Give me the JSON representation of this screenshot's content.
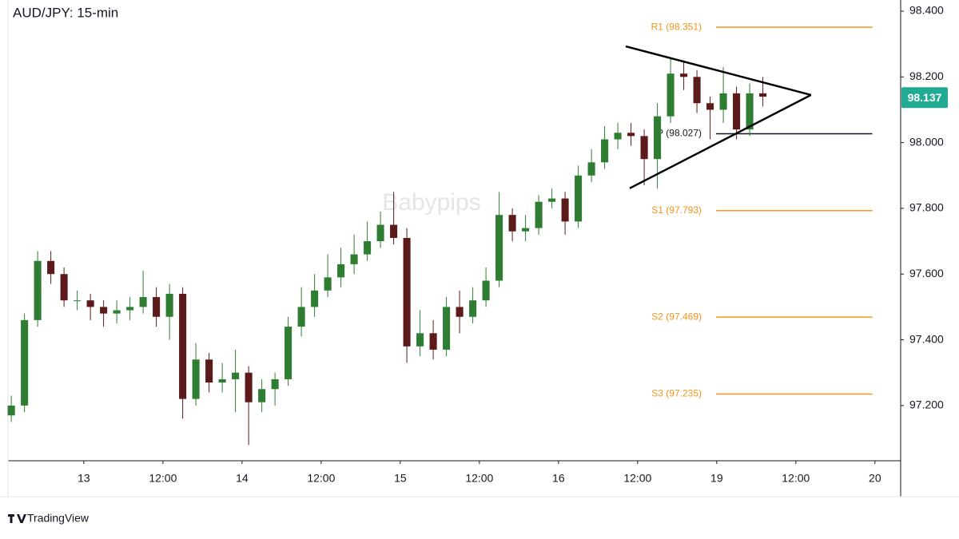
{
  "chart_data": {
    "type": "candlestick",
    "title": "AUD/JPY: 15-min",
    "watermark": "Babypips",
    "brand": "TradingView",
    "up_color": "#2e7d32",
    "down_color": "#5d1a1a",
    "xlim": [
      -11.5,
      123.9
    ],
    "xticks": [
      {
        "value": 0,
        "label": "13"
      },
      {
        "value": 12,
        "label": "12:00"
      },
      {
        "value": 24,
        "label": "14"
      },
      {
        "value": 36,
        "label": "12:00"
      },
      {
        "value": 48,
        "label": "15"
      },
      {
        "value": 60,
        "label": "12:00"
      },
      {
        "value": 72,
        "label": "16"
      },
      {
        "value": 84,
        "label": "12:00"
      },
      {
        "value": 96,
        "label": "19"
      },
      {
        "value": 108,
        "label": "12:00"
      },
      {
        "value": 120,
        "label": "20"
      }
    ],
    "ylim": [
      97.032,
      98.434
    ],
    "yticks": [
      {
        "value": 97.2,
        "label": "97.200"
      },
      {
        "value": 97.4,
        "label": "97.400"
      },
      {
        "value": 97.6,
        "label": "97.600"
      },
      {
        "value": 97.8,
        "label": "97.800"
      },
      {
        "value": 98.0,
        "label": "98.000"
      },
      {
        "value": 98.2,
        "label": "98.200"
      },
      {
        "value": 98.4,
        "label": "98.400"
      }
    ],
    "x": [
      -11,
      -9,
      -7,
      -5,
      -3,
      -1,
      1,
      3,
      5,
      7,
      9,
      11,
      13,
      15,
      17,
      19,
      21,
      23,
      25,
      27,
      29,
      31,
      33,
      35,
      37,
      39,
      41,
      43,
      45,
      47,
      49,
      51,
      53,
      55,
      57,
      59,
      61,
      63,
      65,
      67,
      69,
      71,
      73,
      75,
      77,
      79,
      81,
      83,
      85,
      87,
      89,
      91,
      93,
      95,
      97,
      99,
      101,
      103
    ],
    "open": [
      97.17,
      97.2,
      97.46,
      97.64,
      97.6,
      97.52,
      97.52,
      97.5,
      97.48,
      97.49,
      97.5,
      97.53,
      97.47,
      97.54,
      97.22,
      97.34,
      97.27,
      97.28,
      97.3,
      97.21,
      97.25,
      97.28,
      97.44,
      97.5,
      97.55,
      97.59,
      97.63,
      97.66,
      97.7,
      97.75,
      97.71,
      97.38,
      97.42,
      97.37,
      97.5,
      97.47,
      97.52,
      97.58,
      97.78,
      97.73,
      97.74,
      97.82,
      97.83,
      97.76,
      97.9,
      97.94,
      98.01,
      98.03,
      98.02,
      97.95,
      98.08,
      98.21,
      98.2,
      98.12,
      98.1,
      98.15,
      98.04,
      98.15
    ],
    "high": [
      97.23,
      97.48,
      97.67,
      97.67,
      97.62,
      97.55,
      97.54,
      97.52,
      97.52,
      97.53,
      97.61,
      97.56,
      97.57,
      97.56,
      97.39,
      97.36,
      97.33,
      97.37,
      97.32,
      97.28,
      97.3,
      97.47,
      97.56,
      97.6,
      97.66,
      97.68,
      97.72,
      97.76,
      97.79,
      97.85,
      97.74,
      97.49,
      97.46,
      97.53,
      97.55,
      97.56,
      97.62,
      97.85,
      97.8,
      97.78,
      97.84,
      97.86,
      97.85,
      97.93,
      97.98,
      98.05,
      98.06,
      98.06,
      98.04,
      98.12,
      98.26,
      98.25,
      98.22,
      98.14,
      98.23,
      98.17,
      98.18,
      98.2
    ],
    "low": [
      97.15,
      97.18,
      97.44,
      97.57,
      97.5,
      97.49,
      97.46,
      97.44,
      97.45,
      97.46,
      97.48,
      97.44,
      97.4,
      97.16,
      97.2,
      97.24,
      97.24,
      97.18,
      97.08,
      97.18,
      97.2,
      97.26,
      97.41,
      97.47,
      97.53,
      97.56,
      97.6,
      97.64,
      97.68,
      97.69,
      97.33,
      97.35,
      97.34,
      97.35,
      97.42,
      97.45,
      97.5,
      97.56,
      97.7,
      97.7,
      97.72,
      97.8,
      97.72,
      97.74,
      97.88,
      97.92,
      97.98,
      97.99,
      97.87,
      97.86,
      98.06,
      98.16,
      98.09,
      98.01,
      98.06,
      98.01,
      98.02,
      98.11
    ],
    "close": [
      97.2,
      97.46,
      97.64,
      97.6,
      97.52,
      97.52,
      97.5,
      97.48,
      97.49,
      97.5,
      97.53,
      97.47,
      97.54,
      97.22,
      97.34,
      97.27,
      97.28,
      97.3,
      97.21,
      97.25,
      97.28,
      97.44,
      97.5,
      97.55,
      97.59,
      97.63,
      97.66,
      97.7,
      97.75,
      97.71,
      97.38,
      97.42,
      97.37,
      97.5,
      97.47,
      97.52,
      97.58,
      97.78,
      97.73,
      97.74,
      97.82,
      97.83,
      97.76,
      97.9,
      97.94,
      98.01,
      98.03,
      98.02,
      97.95,
      98.08,
      98.21,
      98.2,
      98.12,
      98.1,
      98.15,
      98.04,
      98.15,
      98.14
    ],
    "last_price": 98.137,
    "last_price_color": "#22ab94",
    "levels": [
      {
        "label": "R1 (98.351)",
        "value": 98.351,
        "color": "#f7931a"
      },
      {
        "label": "P (98.027)",
        "value": 98.027,
        "color": "#131722"
      },
      {
        "label": "S1 (97.793)",
        "value": 97.793,
        "color": "#f7931a"
      },
      {
        "label": "S2 (97.469)",
        "value": 97.469,
        "color": "#f7931a"
      },
      {
        "label": "S3 (97.235)",
        "value": 97.235,
        "color": "#f7931a"
      }
    ],
    "level_xlim": [
      95.9,
      119.6
    ],
    "trendlines": [
      {
        "x": [
          82.2,
          110.3
        ],
        "y": [
          98.293,
          98.145
        ]
      },
      {
        "x": [
          82.8,
          110.3
        ],
        "y": [
          97.861,
          98.145
        ]
      }
    ]
  }
}
